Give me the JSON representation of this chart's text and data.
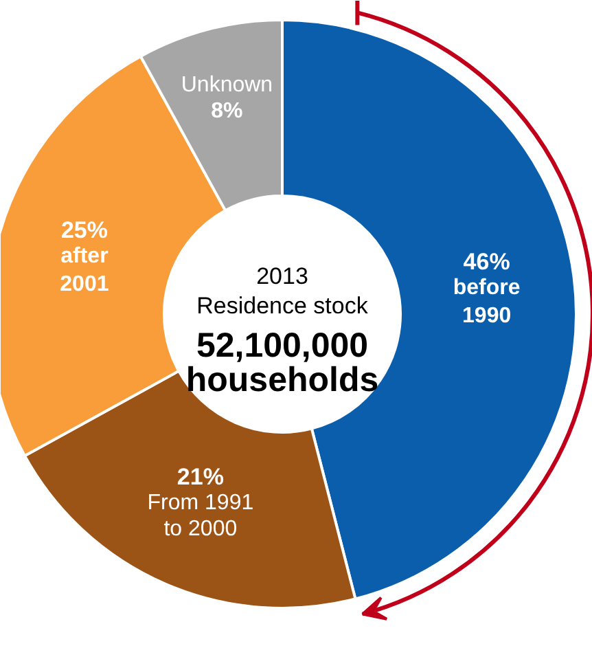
{
  "chart_data": {
    "type": "donut",
    "categories": [
      "before 1990",
      "From 1991 to 2000",
      "after 2001",
      "Unknown"
    ],
    "values": [
      46,
      21,
      25,
      8
    ],
    "colors": [
      "#0a5eab",
      "#9c5316",
      "#f99c3a",
      "#a6a6a6"
    ],
    "value_labels": [
      "46%",
      "21%",
      "25%",
      "8%"
    ],
    "annotations": [
      "2013",
      "Residence stock",
      "52,100,000",
      "households"
    ]
  }
}
